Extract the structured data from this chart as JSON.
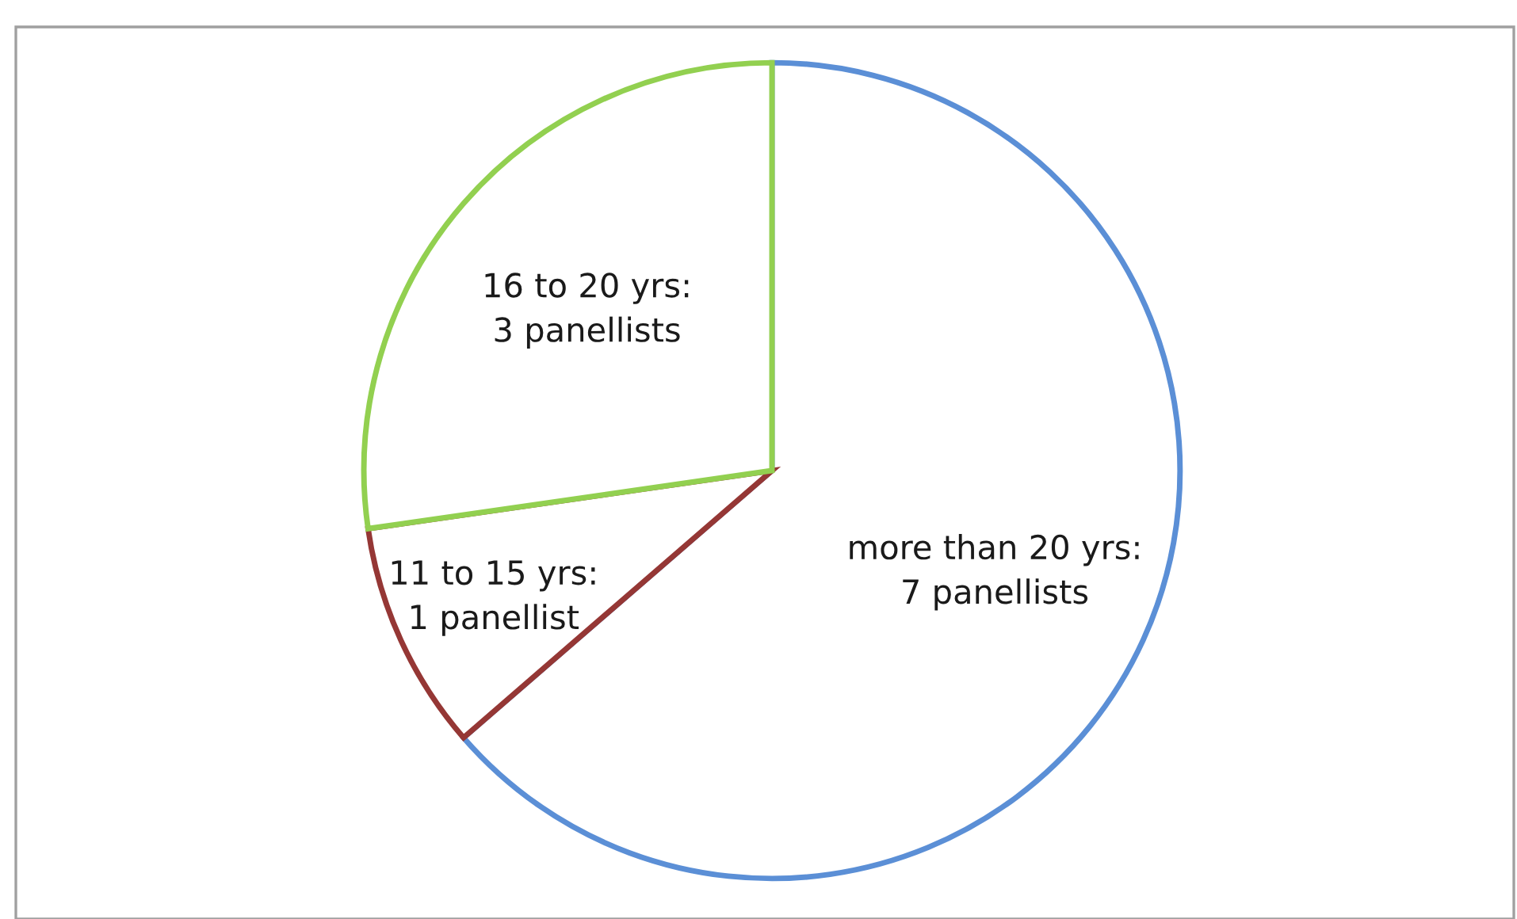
{
  "chart_data": {
    "type": "pie",
    "categories": [
      "more than 20 yrs:\n7 panellists",
      "11 to 15 yrs:\n1 panellist",
      "16 to 20 yrs:\n3 panellists"
    ],
    "values": [
      7,
      1,
      3
    ],
    "colors": [
      "#5b8fd6",
      "#953735",
      "#92d050"
    ],
    "legend": false
  }
}
